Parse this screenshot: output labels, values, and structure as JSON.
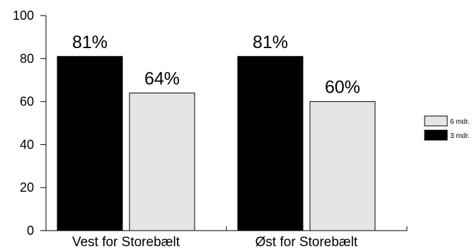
{
  "chart_data": {
    "type": "bar",
    "title": "",
    "xlabel": "",
    "ylabel": "",
    "ylim": [
      0,
      100
    ],
    "yticks": [
      0,
      20,
      40,
      60,
      80,
      100
    ],
    "categories": [
      "Vest for Storebælt",
      "Øst for Storebælt"
    ],
    "series": [
      {
        "name": "3 mdr.",
        "values": [
          81,
          81
        ],
        "labels": [
          "81%",
          "81%"
        ],
        "color": "#000000"
      },
      {
        "name": "6 mdr.",
        "values": [
          64,
          60
        ],
        "labels": [
          "64%",
          "60%"
        ],
        "color": "#e5e5e5"
      }
    ],
    "legend": {
      "placement": "right",
      "entries": [
        "6 mdr.",
        "3 mdr."
      ]
    },
    "grid": false
  }
}
